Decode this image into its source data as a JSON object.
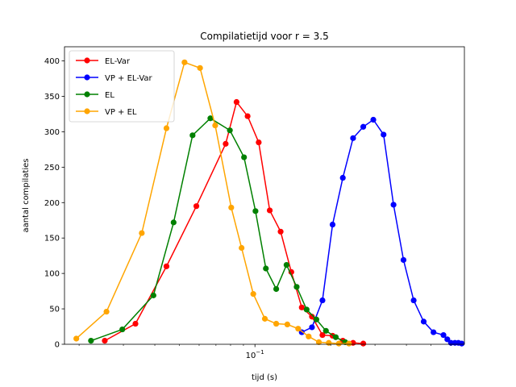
{
  "chart_data": {
    "type": "line",
    "title": "Compilatietijd voor r = 3.5",
    "xlabel": "tijd (s)",
    "ylabel": "aantal compilaties",
    "xscale": "log",
    "xlim": [
      0.0175,
      0.68
    ],
    "ylim": [
      0,
      420
    ],
    "x_ticks": [
      {
        "value": 0.1,
        "label": "10^-1"
      }
    ],
    "y_ticks": [
      0,
      50,
      100,
      150,
      200,
      250,
      300,
      350,
      400
    ],
    "grid": false,
    "legend_position": "top-left",
    "series": [
      {
        "name": "EL-Var",
        "color": "#ff0000",
        "x": [
          0.0253,
          0.0335,
          0.0445,
          0.0585,
          0.0765,
          0.0845,
          0.0935,
          0.1035,
          0.1145,
          0.1265,
          0.1395,
          0.1535,
          0.1685,
          0.1855,
          0.2035,
          0.2235,
          0.2455,
          0.2695
        ],
        "y": [
          5,
          29,
          110,
          195,
          283,
          342,
          322,
          285,
          189,
          159,
          102,
          52,
          39,
          13,
          12,
          5,
          2,
          1
        ]
      },
      {
        "name": "VP + EL-Var",
        "color": "#0000ff",
        "x": [
          0.1535,
          0.1685,
          0.1855,
          0.2035,
          0.2235,
          0.2455,
          0.2695,
          0.2955,
          0.3245,
          0.3555,
          0.3895,
          0.4275,
          0.4685,
          0.5125,
          0.5615,
          0.5815,
          0.6015,
          0.6235,
          0.6435,
          0.6635
        ],
        "y": [
          17,
          24,
          62,
          169,
          235,
          291,
          307,
          317,
          296,
          197,
          119,
          62,
          32,
          17,
          13,
          7,
          2,
          2,
          2,
          1
        ]
      },
      {
        "name": "EL",
        "color": "#008000",
        "x": [
          0.0223,
          0.0297,
          0.0395,
          0.0475,
          0.0565,
          0.0665,
          0.0795,
          0.0905,
          0.1005,
          0.1105,
          0.1215,
          0.1335,
          0.1465,
          0.1605,
          0.1755,
          0.1915,
          0.2095,
          0.2285
        ],
        "y": [
          5,
          21,
          69,
          172,
          295,
          319,
          302,
          264,
          188,
          107,
          78,
          112,
          81,
          49,
          35,
          19,
          10,
          3
        ]
      },
      {
        "name": "VP + EL",
        "color": "#ffa500",
        "x": [
          0.0195,
          0.0257,
          0.0355,
          0.0445,
          0.0525,
          0.0605,
          0.0695,
          0.0805,
          0.0885,
          0.0985,
          0.1095,
          0.1215,
          0.1345,
          0.1485,
          0.1635,
          0.1795,
          0.1965,
          0.2155,
          0.2365
        ],
        "y": [
          8,
          46,
          157,
          305,
          398,
          390,
          309,
          193,
          136,
          71,
          36,
          29,
          28,
          22,
          11,
          3,
          2,
          1,
          1
        ]
      }
    ]
  }
}
